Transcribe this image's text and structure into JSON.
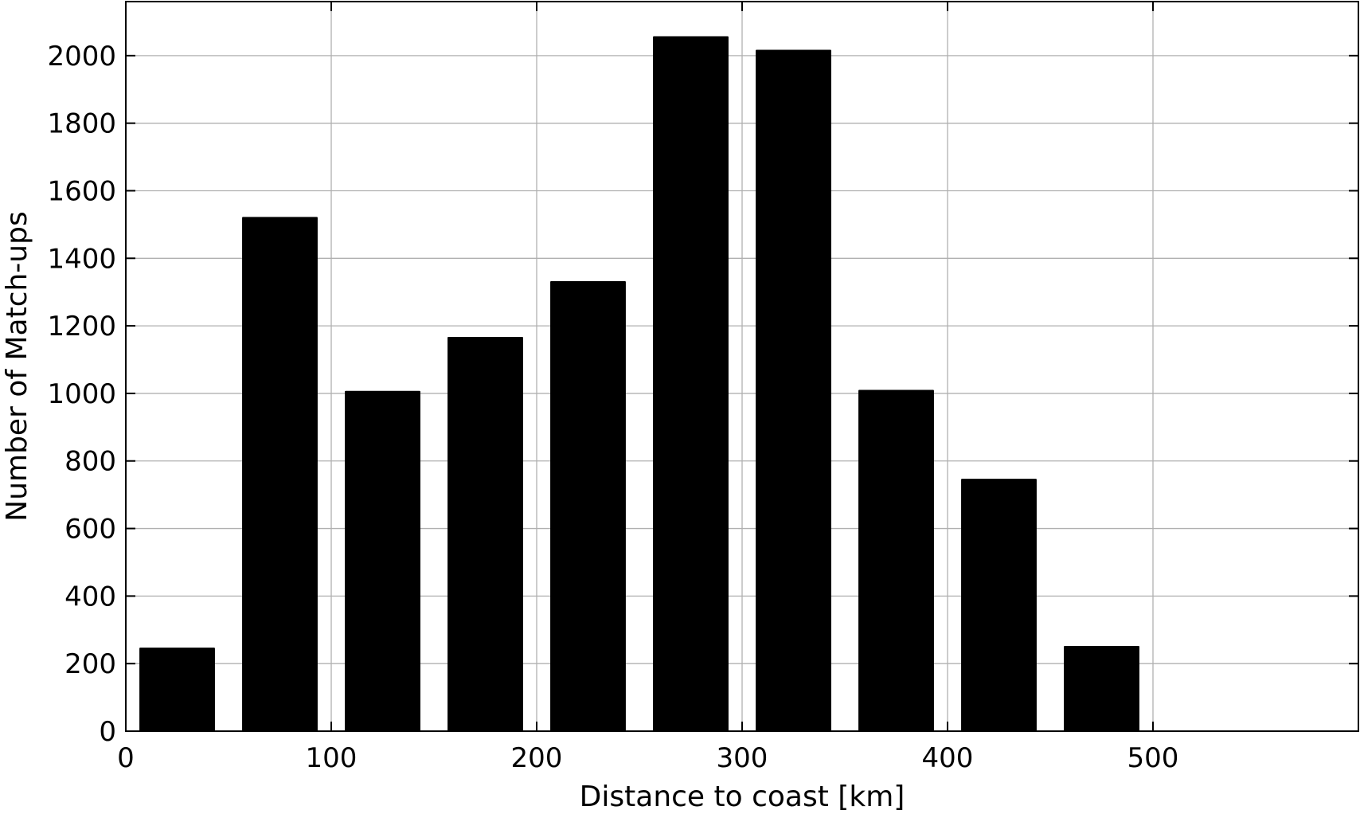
{
  "chart_data": {
    "type": "bar",
    "xlabel": "Distance to coast [km]",
    "ylabel": "Number of Match-ups",
    "xlim": [
      0,
      600
    ],
    "ylim": [
      0,
      2160
    ],
    "grid": true,
    "xticks": [
      0,
      100,
      200,
      300,
      400,
      500
    ],
    "yticks": [
      0,
      200,
      400,
      600,
      800,
      1000,
      1200,
      1400,
      1600,
      1800,
      2000
    ],
    "bar_width": 36,
    "bar_color": "#000000",
    "categories": [
      25,
      75,
      125,
      175,
      225,
      275,
      325,
      375,
      425,
      475
    ],
    "values": [
      245,
      1520,
      1005,
      1165,
      1330,
      2055,
      2015,
      1008,
      745,
      250
    ]
  }
}
